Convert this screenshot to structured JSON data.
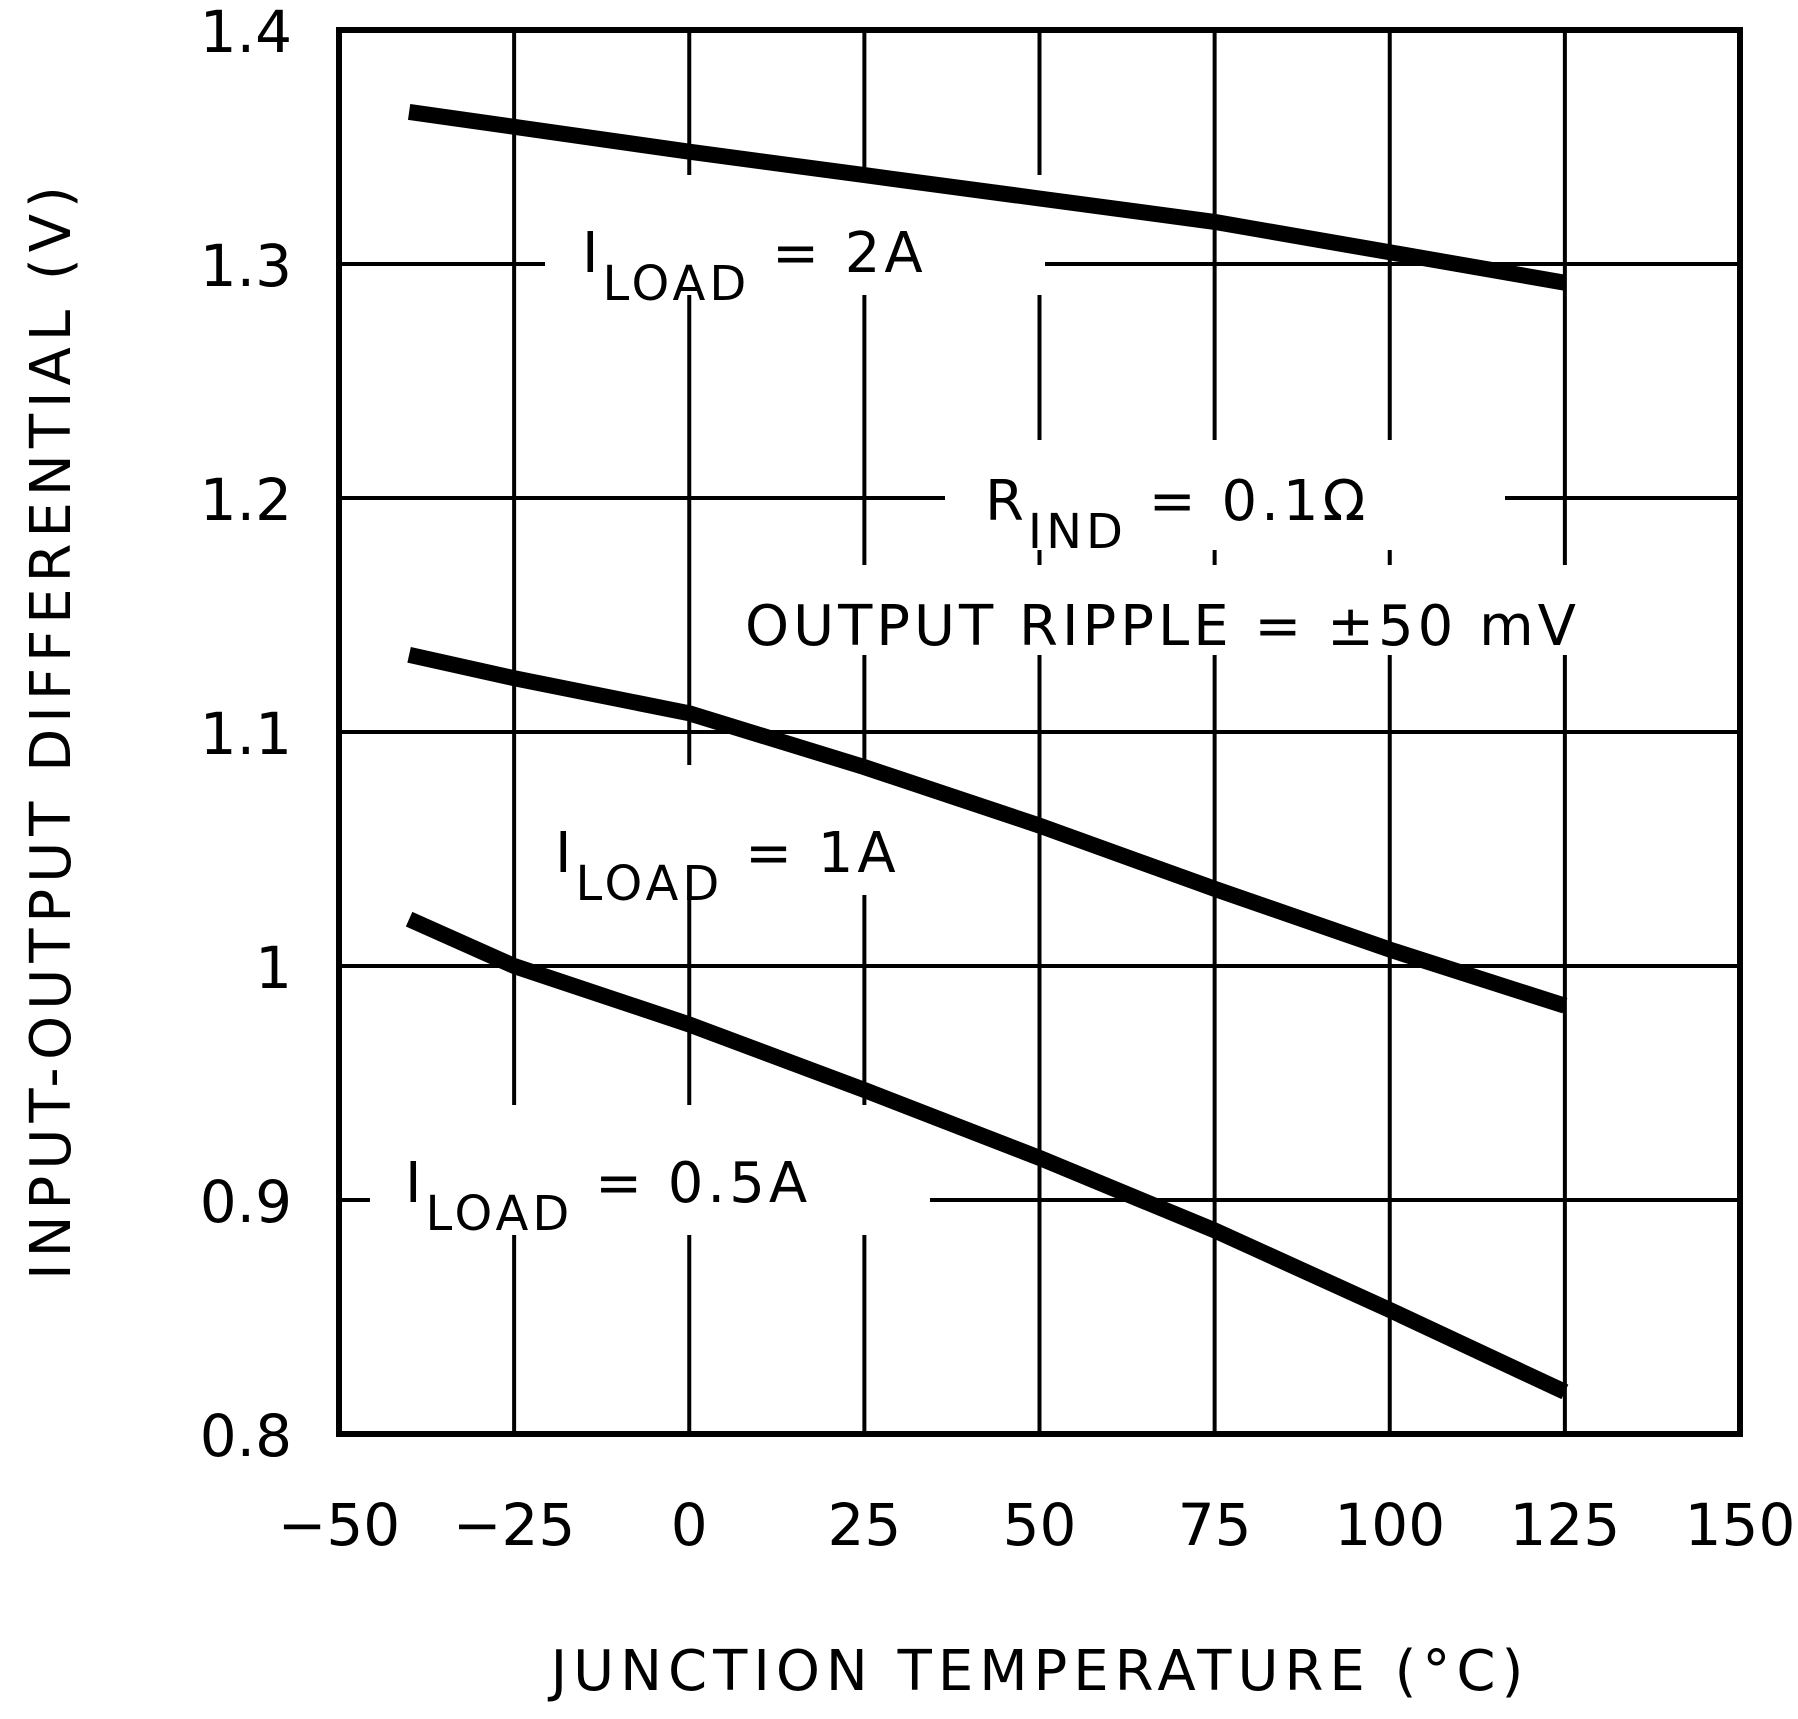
{
  "chart_data": {
    "type": "line",
    "title": "",
    "xlabel": "JUNCTION TEMPERATURE (°C)",
    "ylabel": "INPUT-OUTPUT DIFFERENTIAL (V)",
    "xlim": [
      -50,
      150
    ],
    "ylim": [
      0.8,
      1.4
    ],
    "xticks": [
      -50,
      -25,
      0,
      25,
      50,
      75,
      100,
      125,
      150
    ],
    "xtick_labels": [
      "−50",
      "−25",
      "0",
      "25",
      "50",
      "75",
      "100",
      "125",
      "150"
    ],
    "yticks": [
      0.8,
      0.9,
      1.0,
      1.1,
      1.2,
      1.3,
      1.4
    ],
    "ytick_labels": [
      "0.8",
      "0.9",
      "1",
      "1.1",
      "1.2",
      "1.3",
      "1.4"
    ],
    "grid": true,
    "legend": "inline annotations",
    "series": [
      {
        "name": "ILOAD = 2A",
        "x": [
          -40,
          0,
          25,
          50,
          75,
          100,
          125
        ],
        "y": [
          1.365,
          1.348,
          1.338,
          1.328,
          1.318,
          1.305,
          1.292
        ]
      },
      {
        "name": "ILOAD = 1A",
        "x": [
          -40,
          -25,
          0,
          25,
          50,
          75,
          100,
          125
        ],
        "y": [
          1.133,
          1.123,
          1.108,
          1.085,
          1.06,
          1.033,
          1.007,
          0.983
        ]
      },
      {
        "name": "ILOAD = 0.5A",
        "x": [
          -40,
          -25,
          0,
          25,
          50,
          75,
          100,
          125
        ],
        "y": [
          1.02,
          1.0,
          0.975,
          0.947,
          0.918,
          0.887,
          0.853,
          0.818
        ]
      }
    ],
    "annotations": [
      {
        "text": "ILOAD = 2A",
        "main": "I",
        "sub": "LOAD",
        "rest": " =  2A"
      },
      {
        "text": "RIND = 0.1Ω",
        "main": "R",
        "sub": "IND",
        "rest": "  =  0.1Ω"
      },
      {
        "text": "OUTPUT RIPPLE = ±50 mV"
      },
      {
        "text": "ILOAD = 1A",
        "main": "I",
        "sub": "LOAD",
        "rest": "  =  1A"
      },
      {
        "text": "ILOAD = 0.5A",
        "main": "I",
        "sub": "LOAD",
        "rest": "  =  0.5A"
      }
    ]
  }
}
